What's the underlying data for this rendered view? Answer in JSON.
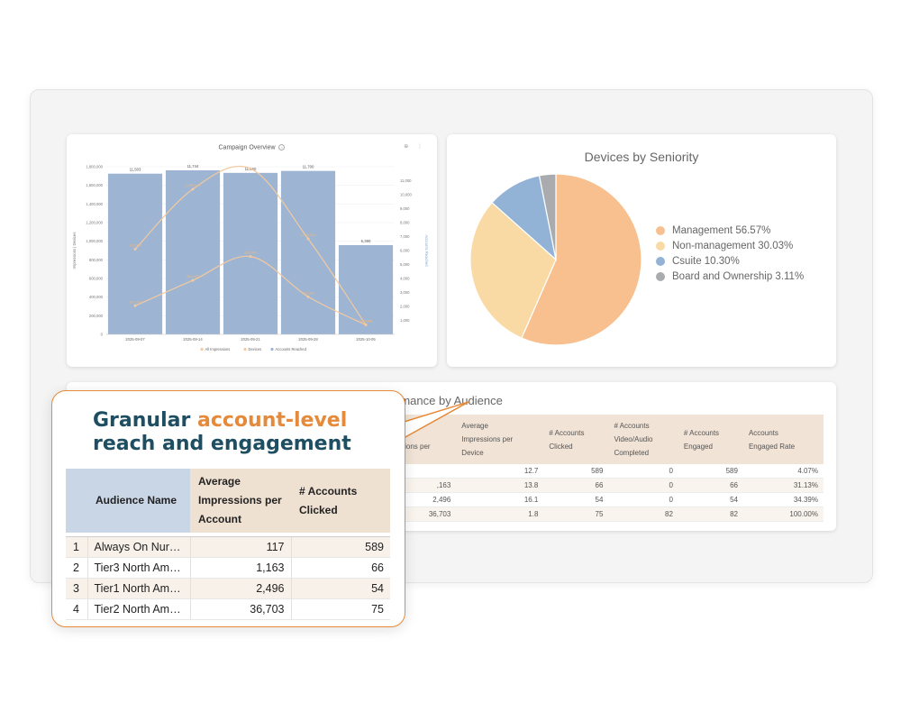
{
  "campaign_overview": {
    "title": "Campaign Overview",
    "tools": "⊕ ⋮",
    "left_axis_label": "Impressions | Devices",
    "right_axis_label": "Accounts Reached",
    "legend": [
      "All Impressions",
      "Devices",
      "Accounts Reached"
    ]
  },
  "devices_by_seniority": {
    "title": "Devices by Seniority",
    "legend": [
      {
        "label": "Management 56.57%",
        "color": "#f7c08e"
      },
      {
        "label": "Non-management 30.03%",
        "color": "#fadaa4"
      },
      {
        "label": "Csuite 10.30%",
        "color": "#92b2d6"
      },
      {
        "label": "Board and Ownership 3.11%",
        "color": "#a9abaf"
      }
    ]
  },
  "performance": {
    "title": "rmance by Audience",
    "columns": [
      "age\nressions per",
      "Average\nImpressions per\nDevice",
      "# Accounts\nClicked",
      "# Accounts\nVideo/Audio\nCompleted",
      "# Accounts\nEngaged",
      "Accounts\nEngaged Rate"
    ],
    "rows": [
      [
        "",
        "12.7",
        "589",
        "0",
        "589",
        "4.07%"
      ],
      [
        ",163",
        "13.8",
        "66",
        "0",
        "66",
        "31.13%"
      ],
      [
        "2,496",
        "16.1",
        "54",
        "0",
        "54",
        "34.39%"
      ],
      [
        "36,703",
        "1.8",
        "75",
        "82",
        "82",
        "100.00%"
      ]
    ]
  },
  "callout": {
    "title_part1": "Granular ",
    "title_accent": "account-level",
    "title_part2": "reach and engagement",
    "headers": [
      "",
      "Audience Name",
      "Average Impressions per Account",
      "# Accounts Clicked"
    ],
    "rows": [
      [
        "1",
        "Always On Nurt…",
        "117",
        "589"
      ],
      [
        "2",
        "Tier3 North Ame…",
        "1,163",
        "66"
      ],
      [
        "3",
        "Tier1 North Ame…",
        "2,496",
        "54"
      ],
      [
        "4",
        "Tier2 North Ame…",
        "36,703",
        "75"
      ]
    ]
  },
  "chart_data": [
    {
      "type": "bar",
      "title": "Campaign Overview",
      "categories": [
        "2025-09-07",
        "2025-09-14",
        "2025-09-21",
        "2025-09-28",
        "2025-10-05"
      ],
      "ylabel": "Impressions | Devices",
      "y2label": "Accounts Reached",
      "ylim": [
        0,
        1800000
      ],
      "y2lim": [
        0,
        12000
      ],
      "yticks": [
        "0",
        "200,000",
        "400,000",
        "600,000",
        "800,000",
        "1,000,000",
        "1,200,000",
        "1,400,000",
        "1,600,000",
        "1,800,000"
      ],
      "y2ticks": [
        "1,000",
        "2,000",
        "3,000",
        "4,000",
        "5,000",
        "6,000",
        "7,000",
        "8,000",
        "9,000",
        "10,000",
        "11,000"
      ],
      "series": [
        {
          "name": "Accounts Reached",
          "kind": "bar",
          "axis": "right",
          "values": [
            11503,
            11744,
            11560,
            11700,
            6390
          ],
          "labels": [
            "11,503",
            "11,744",
            "11,560",
            "11,700",
            "6,390"
          ],
          "color": "#9db5d3"
        },
        {
          "name": "All Impressions",
          "kind": "line",
          "axis": "left",
          "values": [
            914000,
            1559000,
            1780000,
            1026000,
            102000
          ],
          "labels": [
            "914,000",
            "1,559,000",
            "",
            "1,026,000",
            "102,000"
          ],
          "color": "#f3c99f"
        },
        {
          "name": "Devices",
          "kind": "line",
          "axis": "left",
          "values": [
            307000,
            580000,
            836000,
            404000,
            102000
          ],
          "labels": [
            "307,000",
            "580,000",
            "836,000",
            "404,000",
            "102,000"
          ],
          "color": "#f3c99f"
        }
      ]
    },
    {
      "type": "pie",
      "title": "Devices by Seniority",
      "categories": [
        "Management",
        "Non-management",
        "Csuite",
        "Board and Ownership"
      ],
      "values": [
        56.57,
        30.03,
        10.3,
        3.11
      ],
      "colors": [
        "#f7c08e",
        "#fadaa4",
        "#92b2d6",
        "#a9abaf"
      ]
    }
  ]
}
